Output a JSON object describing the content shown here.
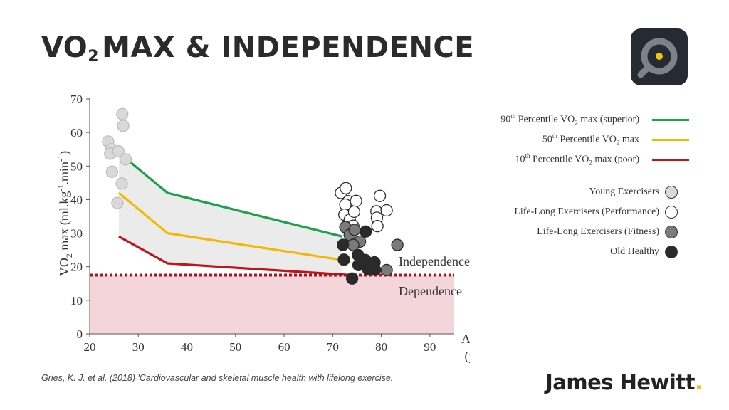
{
  "title": {
    "part1": "VO",
    "sub": "2",
    "part2": "MAX & INDEPENDENCE"
  },
  "legend": {
    "lines": [
      {
        "label_pre": "90",
        "label_sup": "th",
        "label_mid": " Percentile VO",
        "label_sub": "2",
        "label_post": " max (superior)",
        "color": "#1aa14a"
      },
      {
        "label_pre": "50",
        "label_sup": "th",
        "label_mid": " Percentile VO",
        "label_sub": "2",
        "label_post": " max",
        "color": "#f5b800"
      },
      {
        "label_pre": "10",
        "label_sup": "th",
        "label_mid": " Percentile VO",
        "label_sub": "2",
        "label_post": " max (poor)",
        "color": "#c0141c"
      }
    ],
    "markers": [
      {
        "label": "Young Exercisers",
        "color": "#d9d9d9"
      },
      {
        "label": "Life-Long Exercisers (Performance)",
        "color": "#ffffff"
      },
      {
        "label": "Life-Long Exercisers (Fitness)",
        "color": "#7a7a7a"
      },
      {
        "label": "Old Healthy",
        "color": "#2a2a2a"
      }
    ]
  },
  "citation": "Gries, K. J. et al. (2018) 'Cardiovascular and skeletal muscle health with lifelong exercise.",
  "brand": {
    "name": "James Hewitt",
    "dot": "."
  },
  "logo": {
    "icon": "magnifier-target-icon",
    "colors": {
      "background": "#262a33",
      "ring": "#7d8189",
      "dot": "#f2c311"
    }
  },
  "chart_data": {
    "type": "line",
    "xlabel": "Age",
    "xunit": "(y)",
    "ylabel_parts": {
      "a": "VO",
      "b": "2",
      "c": " max (ml.kg",
      "d": "-1",
      "e": ".min",
      "f": "-1",
      "g": ")"
    },
    "xlim": [
      20,
      95
    ],
    "ylim": [
      0,
      70
    ],
    "xticks": [
      20,
      30,
      40,
      50,
      60,
      70,
      80,
      90
    ],
    "yticks": [
      0,
      10,
      20,
      30,
      40,
      50,
      60,
      70
    ],
    "threshold": {
      "value": 17.5,
      "color": "#b01218"
    },
    "regions": [
      {
        "label": "Independence",
        "side": "above"
      },
      {
        "label": "Dependence",
        "side": "below",
        "color": "#f4d6da"
      }
    ],
    "band_color": "#ebebeb",
    "series": [
      {
        "x": [
          26,
          36,
          72
        ],
        "y": [
          54,
          42,
          29
        ],
        "color": "#1aa14a"
      },
      {
        "x": [
          26,
          36,
          72
        ],
        "y": [
          42,
          30,
          22
        ],
        "color": "#f5b800"
      },
      {
        "x": [
          26,
          36,
          74
        ],
        "y": [
          29,
          21,
          17.5
        ],
        "color": "#c0141c"
      }
    ],
    "scatter": [
      {
        "group": 0,
        "color": "#d9d9d9",
        "points": [
          [
            26.7,
            65.5
          ],
          [
            26.9,
            62
          ],
          [
            23.8,
            57.3
          ],
          [
            24.4,
            55
          ],
          [
            24.2,
            53.7
          ],
          [
            25.9,
            54.4
          ],
          [
            27.4,
            52
          ],
          [
            24.6,
            48.3
          ],
          [
            26.6,
            44.8
          ],
          [
            25.7,
            39
          ]
        ]
      },
      {
        "group": 1,
        "color": "#ffffff",
        "points": [
          [
            71.7,
            42
          ],
          [
            72.7,
            43.4
          ],
          [
            73.2,
            39.5
          ],
          [
            72.6,
            38.5
          ],
          [
            72.4,
            35.5
          ],
          [
            73.5,
            34
          ],
          [
            74.8,
            39.6
          ],
          [
            74.4,
            36.4
          ],
          [
            79.7,
            41.1
          ],
          [
            79,
            36.5
          ],
          [
            81.1,
            36.8
          ],
          [
            79.1,
            34.6
          ],
          [
            79.2,
            32.1
          ],
          [
            74.2,
            32.2
          ]
        ]
      },
      {
        "group": 2,
        "color": "#7a7a7a",
        "points": [
          [
            72.6,
            31.8
          ],
          [
            73.5,
            29.5
          ],
          [
            74.5,
            31
          ],
          [
            75.6,
            27.5
          ],
          [
            74.2,
            26.5
          ],
          [
            83.3,
            26.5
          ],
          [
            81.1,
            19
          ]
        ]
      },
      {
        "group": 3,
        "color": "#2a2a2a",
        "points": [
          [
            72.1,
            26.5
          ],
          [
            76.8,
            30.5
          ],
          [
            72.3,
            22.1
          ],
          [
            75.2,
            23.5
          ],
          [
            75.3,
            20.5
          ],
          [
            76.7,
            22
          ],
          [
            77.4,
            20.5
          ],
          [
            78.6,
            21.3
          ],
          [
            78.7,
            19.1
          ],
          [
            74,
            16.5
          ],
          [
            77.3,
            19.2
          ]
        ]
      }
    ]
  }
}
